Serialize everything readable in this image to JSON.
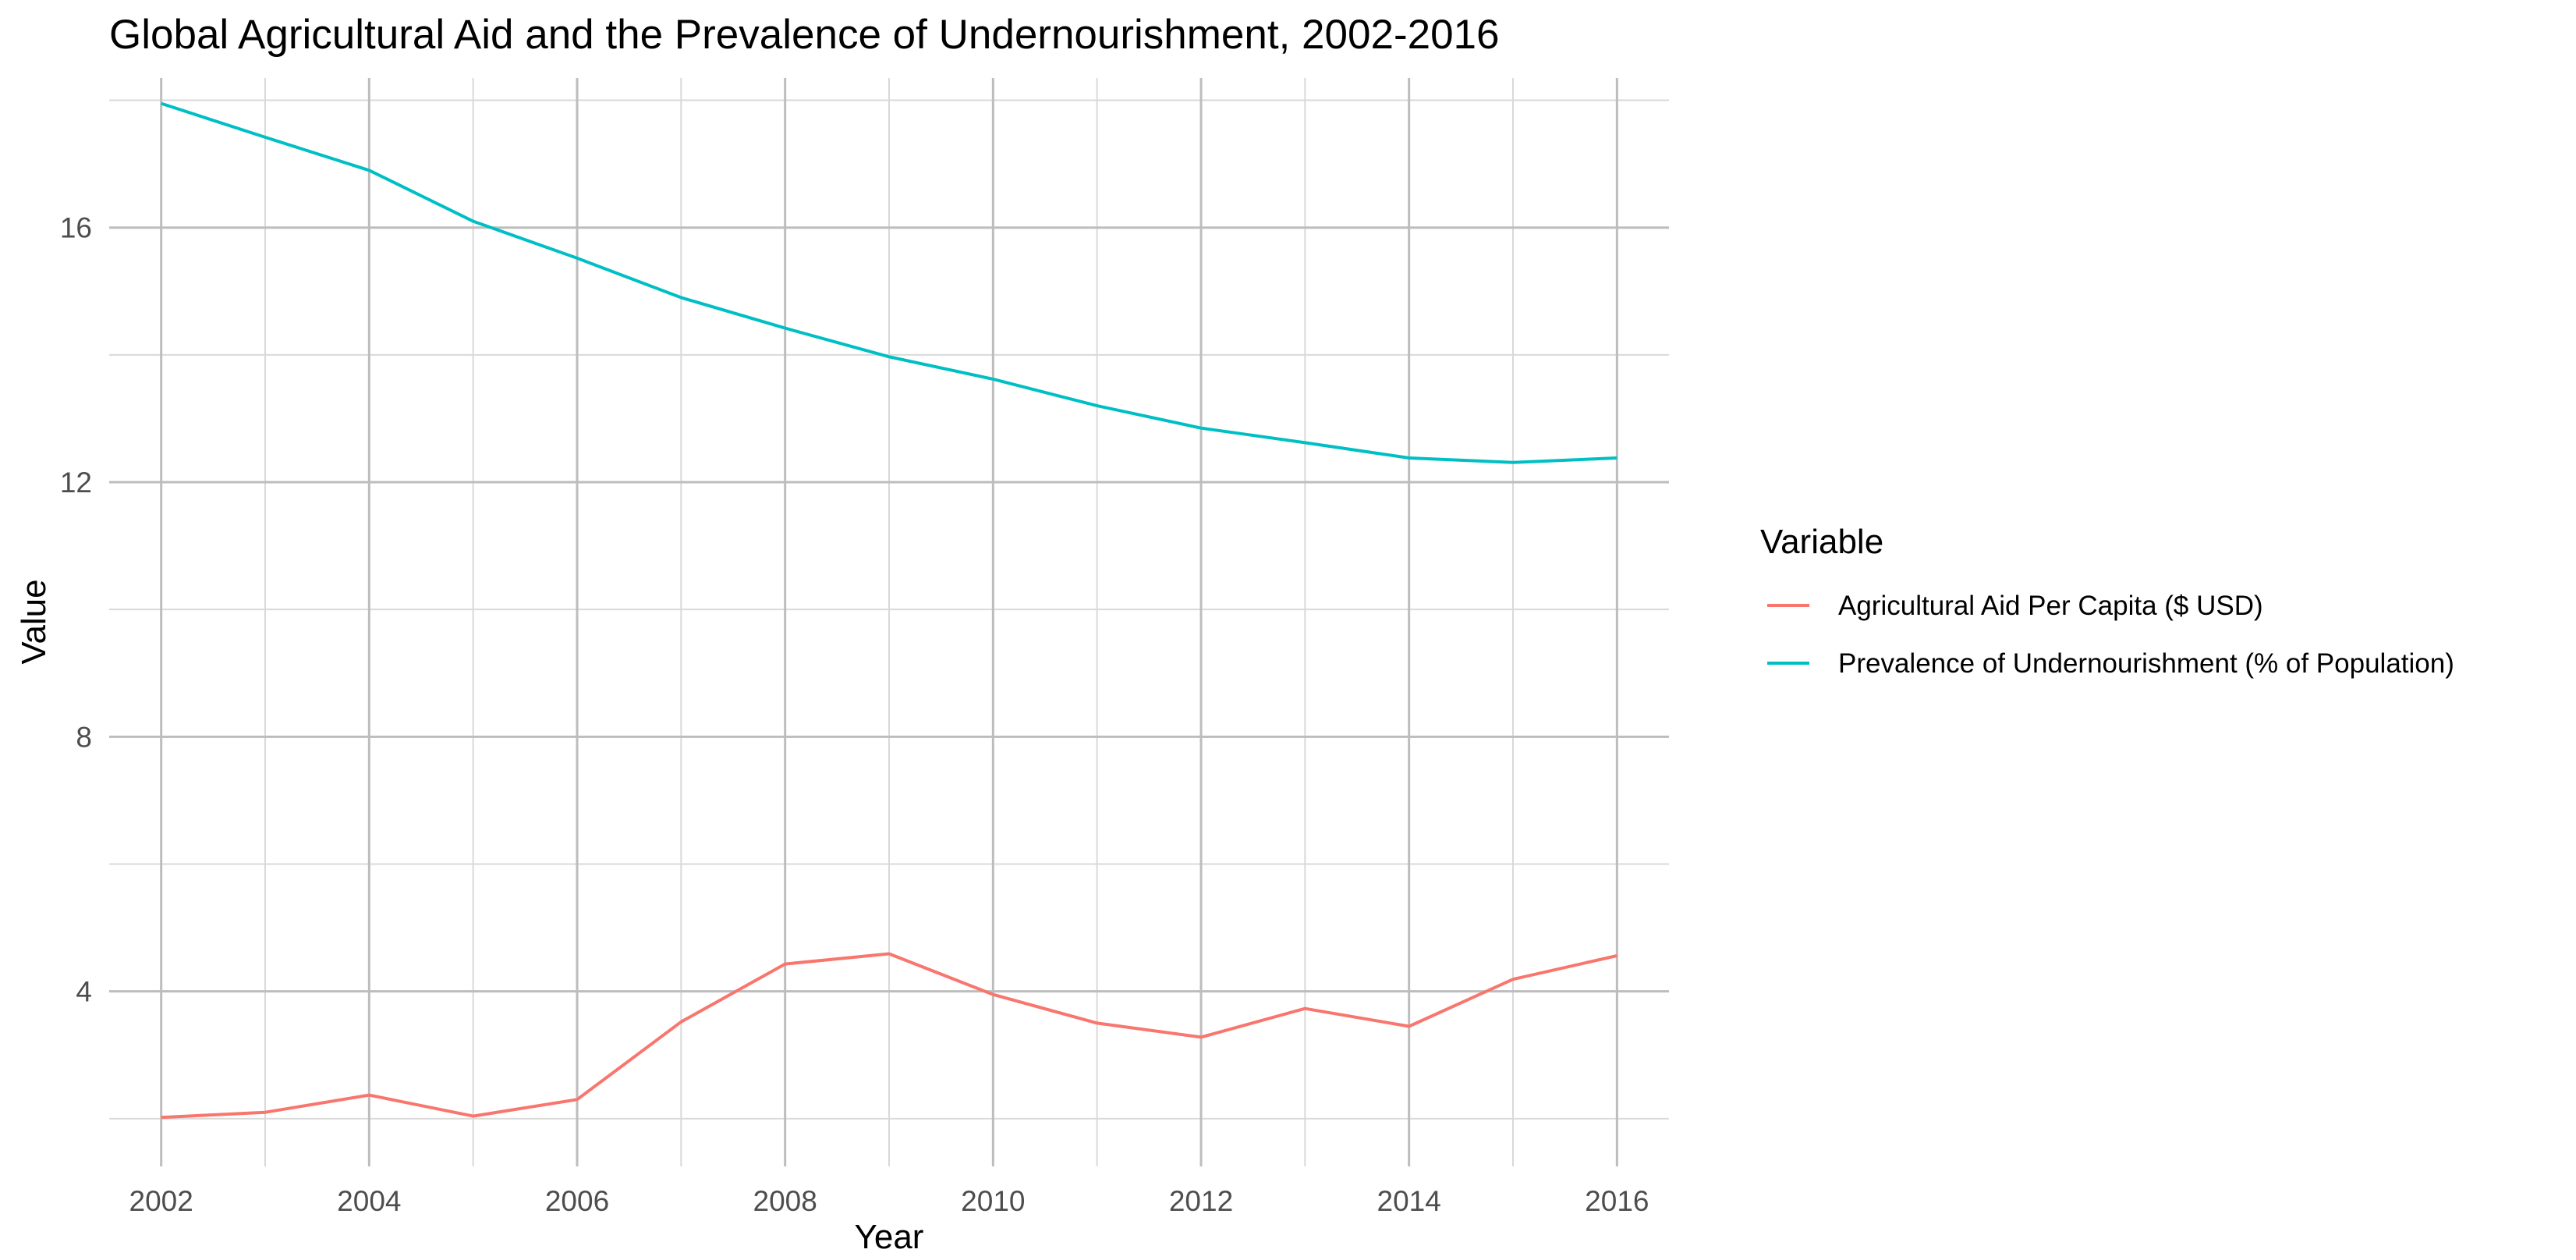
{
  "chart_data": {
    "type": "line",
    "title": "Global Agricultural Aid and the Prevalence of Undernourishment, 2002-2016",
    "xlabel": "Year",
    "ylabel": "Value",
    "x": [
      2002,
      2003,
      2004,
      2005,
      2006,
      2007,
      2008,
      2009,
      2010,
      2011,
      2012,
      2013,
      2014,
      2015,
      2016
    ],
    "x_ticks": [
      "2002",
      "2004",
      "2006",
      "2008",
      "2010",
      "2012",
      "2014",
      "2016"
    ],
    "y_ticks": [
      "4",
      "8",
      "12",
      "16"
    ],
    "xlim": [
      2001.5,
      2016.5
    ],
    "ylim": [
      1.25,
      18.35
    ],
    "grid": true,
    "legend_title": "Variable",
    "legend_position": "right",
    "series": [
      {
        "name": "Agricultural Aid Per Capita ($ USD)",
        "color": "#F8766D",
        "values": [
          2.02,
          2.1,
          2.37,
          2.04,
          2.3,
          3.52,
          4.43,
          4.59,
          3.95,
          3.5,
          3.28,
          3.73,
          3.45,
          4.19,
          4.56
        ]
      },
      {
        "name": "Prevalence of Undernourishment (% of Population)",
        "color": "#00BFC4",
        "values": [
          17.95,
          17.42,
          16.9,
          16.1,
          15.52,
          14.9,
          14.42,
          13.97,
          13.62,
          13.2,
          12.85,
          12.62,
          12.38,
          12.31,
          12.38
        ]
      }
    ]
  }
}
